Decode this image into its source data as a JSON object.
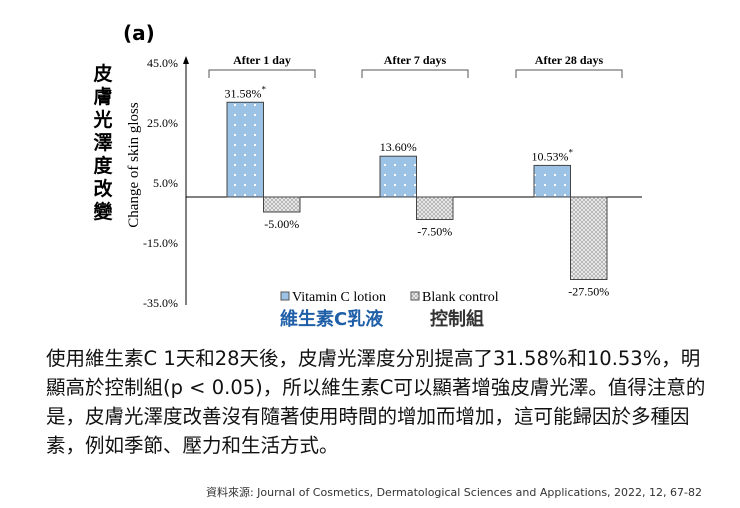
{
  "panel_label": "(a)",
  "chart_data": {
    "type": "bar",
    "ylabel": "Change of skin gloss",
    "ylabel_zh": "皮膚光澤度改變",
    "ylim": [
      -35,
      45
    ],
    "yticks": [
      "45.0%",
      "25.0%",
      "5.0%",
      "-15.0%",
      "-35.0%"
    ],
    "ytick_values": [
      45,
      25,
      5,
      -15,
      -35
    ],
    "categories": [
      "After 1 day",
      "After 7 days",
      "After 28 days"
    ],
    "series": [
      {
        "name": "Vitamin C lotion",
        "name_zh": "維生素C乳液",
        "values": [
          31.58,
          13.6,
          10.53
        ],
        "labels": [
          "31.58%",
          "13.60%",
          "10.53%"
        ],
        "significant": [
          true,
          false,
          true
        ],
        "color": "#9cc3e6"
      },
      {
        "name": "Blank control",
        "name_zh": "控制組",
        "values": [
          -5.0,
          -7.5,
          -27.5
        ],
        "labels": [
          "-5.00%",
          "-7.50%",
          "-27.50%"
        ],
        "significant": [
          false,
          false,
          false
        ],
        "color": "#d9d9d9"
      }
    ],
    "legend": "bottom",
    "grid": false
  },
  "text": {
    "paragraph": "使用維生素C 1天和28天後，皮膚光澤度分別提高了31.58%和10.53%，明顯高於控制組(p < 0.05)，所以維生素C可以顯著增強皮膚光澤。值得注意的是，皮膚光澤度改善沒有隨著使用時間的增加而增加，這可能歸因於多種因素，例如季節、壓力和生活方式。",
    "source": "資料來源: Journal of Cosmetics, Dermatological Sciences and Applications, 2022, 12, 67-82"
  },
  "colors": {
    "accent": "#1f5fa8"
  }
}
